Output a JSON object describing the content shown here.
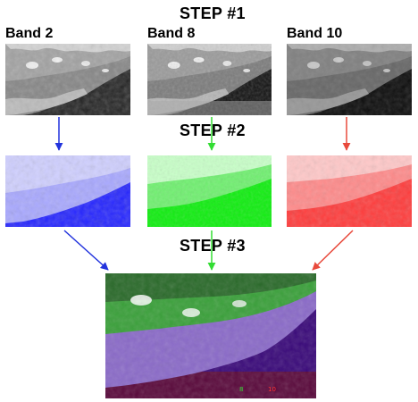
{
  "steps": {
    "step1": "STEP #1",
    "step2": "STEP #2",
    "step3": "STEP #3"
  },
  "bands": {
    "band2": "Band 2",
    "band8": "Band 8",
    "band10": "Band 10"
  },
  "composite_labels": {
    "green_label": "8",
    "red_label": "10"
  },
  "colors": {
    "blue_arrow": "#2233dd",
    "green_arrow": "#33dd33",
    "red_arrow": "#e84a3c",
    "blue_tint": "#3333ff",
    "green_tint": "#22ee22",
    "red_tint": "#ff4444"
  }
}
